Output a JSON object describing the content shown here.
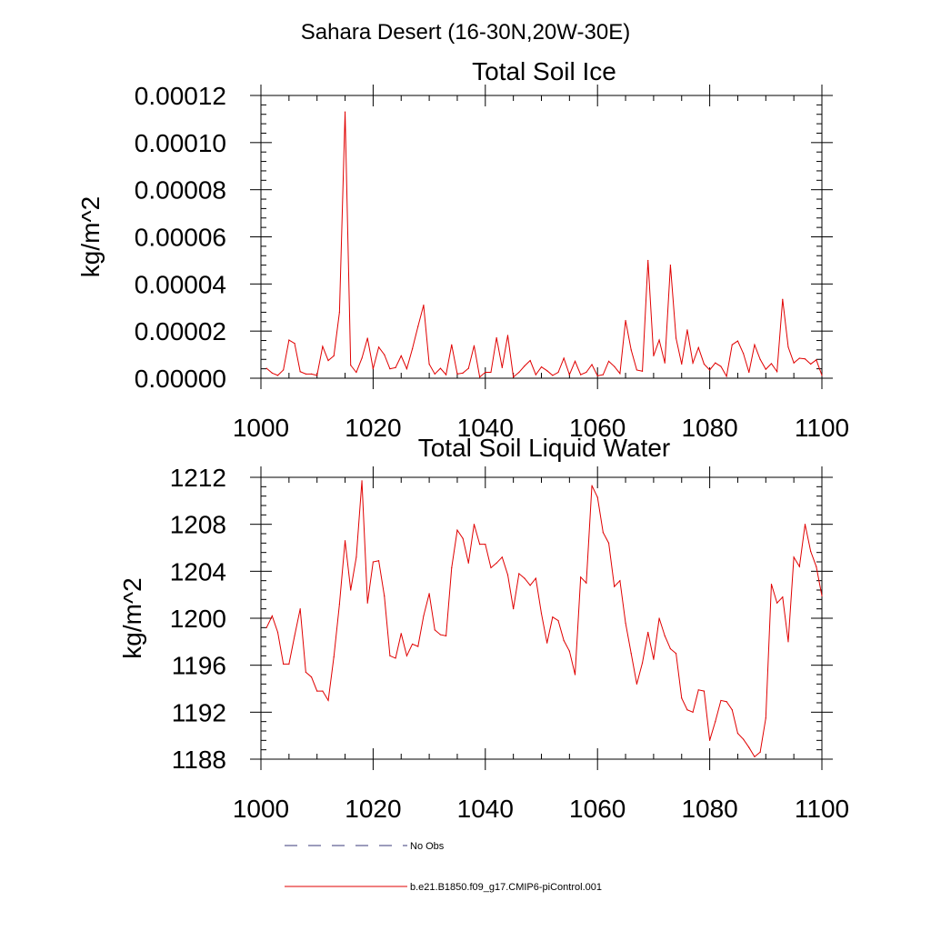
{
  "figure_title": "Sahara Desert (16-30N,20W-30E)",
  "legend": [
    {
      "label": "No Obs",
      "style": "dashed",
      "color": "#3a3a78"
    },
    {
      "label": "b.e21.B1850.f09_g17.CMIP6-piControl.001",
      "style": "solid",
      "color": "#e00000"
    }
  ],
  "chart_data": [
    {
      "type": "line",
      "title": "Total Soil Ice",
      "xlabel": "",
      "ylabel": "kg/m^2",
      "xlim": [
        1000,
        1100
      ],
      "ylim": [
        0.0,
        0.00012
      ],
      "xticks": [
        1000,
        1020,
        1040,
        1060,
        1080,
        1100
      ],
      "xtick_labels": [
        "1000",
        "1020",
        "1040",
        "1060",
        "1080",
        "1100"
      ],
      "yticks": [
        0.0,
        2e-05,
        4e-05,
        6e-05,
        8e-05,
        0.0001,
        0.00012
      ],
      "ytick_labels": [
        "0.00000",
        "0.00002",
        "0.00004",
        "0.00006",
        "0.00008",
        "0.00010",
        "0.00012"
      ],
      "x_start": 1001,
      "series": [
        {
          "name": "b.e21.B1850.f09_g17.CMIP6-piControl.001",
          "color": "#e00000",
          "values": [
            4.2e-06,
            2.2e-06,
            1.2e-06,
            3.5e-06,
            1.62e-05,
            1.48e-05,
            2.8e-06,
            1.8e-06,
            1.8e-06,
            1.2e-06,
            1.35e-05,
            7.5e-06,
            9.5e-06,
            2.8e-05,
            0.000113,
            5.5e-06,
            2.5e-06,
            8.5e-06,
            1.7e-05,
            4e-06,
            1.32e-05,
            1e-05,
            4e-06,
            4.5e-06,
            9.5e-06,
            4e-06,
            1.25e-05,
            2.2e-05,
            3.1e-05,
            6e-06,
            1.8e-06,
            4.2e-06,
            1.5e-06,
            1.42e-05,
            1.8e-06,
            2.2e-06,
            4.2e-06,
            1.38e-05,
            5e-07,
            2.5e-06,
            2.5e-06,
            1.72e-05,
            4.5e-06,
            1.82e-05,
            5e-07,
            2.5e-06,
            5.2e-06,
            7.5e-06,
            1.5e-06,
            4.8e-06,
            3.2e-06,
            1.2e-06,
            2.5e-06,
            8.5e-06,
            1.5e-06,
            7.2e-06,
            1.5e-06,
            2.5e-06,
            5.8e-06,
            1e-06,
            1.5e-06,
            7.2e-06,
            5e-06,
            2e-06,
            2.45e-05,
            1.2e-05,
            3.5e-06,
            3e-06,
            5e-05,
            9.5e-06,
            1.62e-05,
            6.5e-06,
            4.8e-05,
            1.7e-05,
            6e-06,
            2.05e-05,
            6.5e-06,
            1.3e-05,
            6e-06,
            3.5e-06,
            6.5e-06,
            5e-06,
            8e-07,
            1.42e-05,
            1.58e-05,
            1.05e-05,
            2.5e-06,
            1.42e-05,
            8e-06,
            3.8e-06,
            6.2e-06,
            2.8e-06,
            3.35e-05,
            1.32e-05,
            6.5e-06,
            8.5e-06,
            8.2e-06,
            6e-06,
            7.8e-06,
            1.2e-06
          ]
        }
      ]
    },
    {
      "type": "line",
      "title": "Total Soil Liquid Water",
      "xlabel": "",
      "ylabel": "kg/m^2",
      "xlim": [
        1000,
        1100
      ],
      "ylim": [
        1188,
        1212
      ],
      "xticks": [
        1000,
        1020,
        1040,
        1060,
        1080,
        1100
      ],
      "xtick_labels": [
        "1000",
        "1020",
        "1040",
        "1060",
        "1080",
        "1100"
      ],
      "yticks": [
        1188,
        1192,
        1196,
        1200,
        1204,
        1208,
        1212
      ],
      "ytick_labels": [
        "1188",
        "1192",
        "1196",
        "1200",
        "1204",
        "1208",
        "1212"
      ],
      "x_start": 1001,
      "series": [
        {
          "name": "b.e21.B1850.f09_g17.CMIP6-piControl.001",
          "color": "#e00000",
          "values": [
            1199.2,
            1200.2,
            1198.8,
            1196.1,
            1196.1,
            1198.5,
            1200.8,
            1195.4,
            1195.0,
            1193.8,
            1193.8,
            1193.0,
            1196.7,
            1201.2,
            1206.6,
            1202.4,
            1205.2,
            1211.7,
            1201.3,
            1204.8,
            1204.9,
            1201.9,
            1196.8,
            1196.6,
            1198.7,
            1196.8,
            1197.8,
            1197.6,
            1200.2,
            1202.1,
            1199.0,
            1198.6,
            1198.5,
            1204.3,
            1207.5,
            1206.8,
            1204.7,
            1208.0,
            1206.3,
            1206.3,
            1204.3,
            1204.7,
            1205.2,
            1203.7,
            1200.8,
            1203.8,
            1203.4,
            1202.8,
            1203.4,
            1200.4,
            1197.9,
            1200.1,
            1199.8,
            1198.1,
            1197.2,
            1195.2,
            1203.5,
            1203.0,
            1211.3,
            1210.3,
            1207.3,
            1206.4,
            1202.7,
            1203.2,
            1199.6,
            1197.0,
            1194.4,
            1196.2,
            1198.8,
            1196.5,
            1200.0,
            1198.5,
            1197.4,
            1197.0,
            1193.2,
            1192.2,
            1192.0,
            1193.9,
            1193.8,
            1189.6,
            1191.2,
            1193.0,
            1192.9,
            1192.2,
            1190.2,
            1189.7,
            1189.0,
            1188.2,
            1188.6,
            1191.5,
            1202.9,
            1201.3,
            1201.8,
            1198.0,
            1205.2,
            1204.4,
            1208.0,
            1205.7,
            1204.4,
            1201.9
          ]
        }
      ]
    }
  ]
}
